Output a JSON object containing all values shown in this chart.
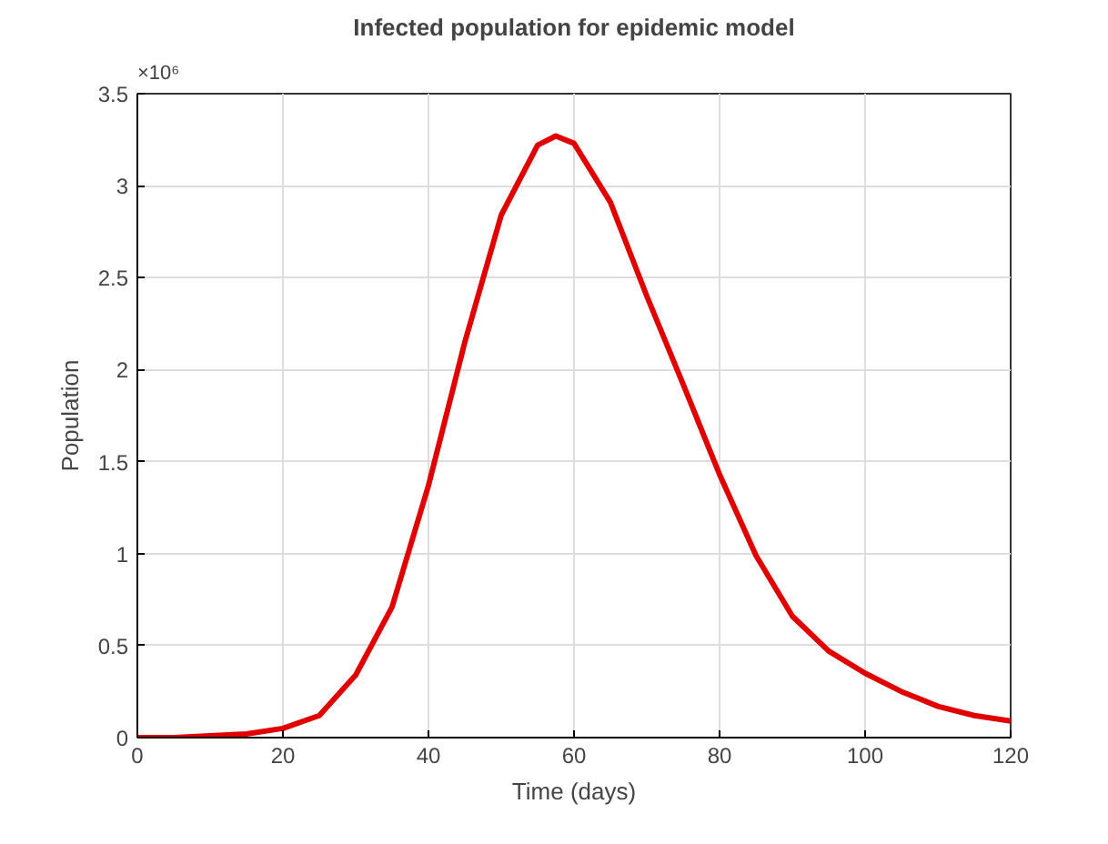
{
  "chart_data": {
    "type": "line",
    "title": "Infected population for epidemic model",
    "xlabel": "Time (days)",
    "ylabel": "Population",
    "annotations": [
      "×10⁶"
    ],
    "x": [
      0,
      5,
      10,
      15,
      20,
      25,
      30,
      35,
      40,
      45,
      50,
      55,
      57.5,
      60,
      65,
      70,
      75,
      80,
      85,
      90,
      95,
      100,
      105,
      110,
      115,
      120
    ],
    "series": [
      {
        "color": "#e00000",
        "values": [
          0,
          0,
          0.01,
          0.02,
          0.05,
          0.12,
          0.34,
          0.71,
          1.37,
          2.15,
          2.84,
          3.22,
          3.27,
          3.23,
          2.91,
          2.4,
          1.92,
          1.43,
          0.99,
          0.66,
          0.47,
          0.35,
          0.25,
          0.17,
          0.12,
          0.09
        ]
      }
    ],
    "xlim": [
      0,
      120
    ],
    "xticks": [
      0,
      20,
      40,
      60,
      80,
      100,
      120
    ],
    "ylim": [
      0,
      3.5
    ],
    "yticks": [
      0,
      0.5,
      1,
      1.5,
      2,
      2.5,
      3,
      3.5
    ],
    "grid": true,
    "line_style": "solid"
  }
}
